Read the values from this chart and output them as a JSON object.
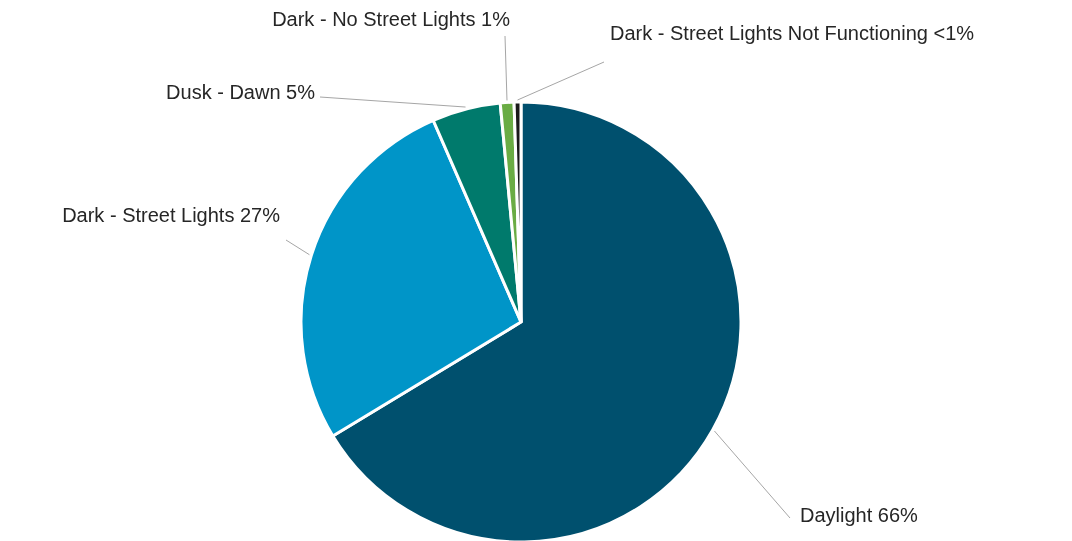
{
  "chart_data": {
    "type": "pie",
    "categories": [
      "Daylight",
      "Dark - Street Lights",
      "Dusk - Dawn",
      "Dark - No Street Lights",
      "Dark - Street Lights Not Functioning"
    ],
    "values": [
      66,
      27,
      5,
      1,
      0.5
    ],
    "value_labels": [
      "66%",
      "27%",
      "5%",
      "1%",
      "<1%"
    ],
    "colors": [
      "#00506e",
      "#0095c8",
      "#007a6c",
      "#6aac44",
      "#1a1a1a"
    ]
  }
}
